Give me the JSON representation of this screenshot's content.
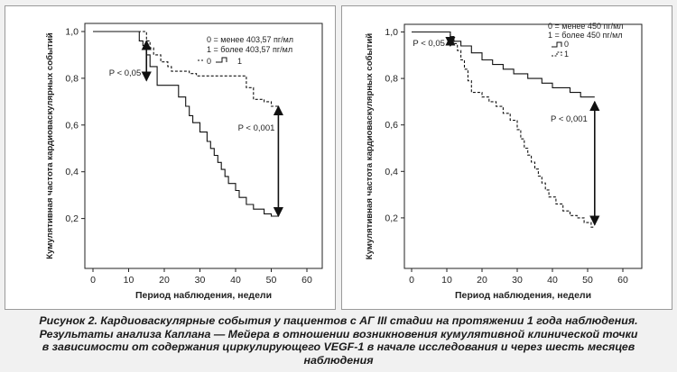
{
  "chart_data": [
    {
      "type": "line",
      "subtype": "kaplan-meier",
      "ylabel": "Кумулятивная частота кардиоваскулярных событий",
      "xlabel": "Период наблюдения, недели",
      "xlim": [
        0,
        60
      ],
      "ylim": [
        0,
        1.0
      ],
      "xticks": [
        "0",
        "10",
        "20",
        "30",
        "40",
        "50",
        "60"
      ],
      "yticks": [
        "0,2",
        "0,4",
        "0,6",
        "0,8",
        "1,0"
      ],
      "legend_lines": [
        "0 = менее 403,57 пг/мл",
        "1 = более 403,57 пг/мл"
      ],
      "legend_keys": [
        "0",
        "1"
      ],
      "series": [
        {
          "name": "0",
          "style": "dashed",
          "x": [
            0,
            15,
            15,
            16,
            16,
            17,
            17,
            19,
            19,
            21,
            21,
            22,
            22,
            27,
            27,
            29,
            29,
            43,
            43,
            45,
            45,
            48,
            48,
            50,
            50,
            52
          ],
          "y": [
            1.0,
            1.0,
            0.96,
            0.96,
            0.93,
            0.93,
            0.9,
            0.9,
            0.87,
            0.87,
            0.85,
            0.85,
            0.83,
            0.83,
            0.82,
            0.82,
            0.81,
            0.81,
            0.76,
            0.76,
            0.71,
            0.71,
            0.7,
            0.7,
            0.68,
            0.68
          ]
        },
        {
          "name": "1",
          "style": "solid",
          "x": [
            0,
            13,
            13,
            14,
            14,
            15,
            15,
            16,
            16,
            18,
            18,
            24,
            24,
            26,
            26,
            27,
            27,
            28,
            28,
            30,
            30,
            32,
            32,
            33,
            33,
            34,
            34,
            35,
            35,
            36,
            36,
            37,
            37,
            38,
            38,
            40,
            40,
            41,
            41,
            43,
            43,
            45,
            45,
            48,
            48,
            50,
            50,
            52
          ],
          "y": [
            1.0,
            1.0,
            0.96,
            0.96,
            0.94,
            0.94,
            0.9,
            0.9,
            0.85,
            0.85,
            0.77,
            0.77,
            0.72,
            0.72,
            0.68,
            0.68,
            0.64,
            0.64,
            0.61,
            0.61,
            0.57,
            0.57,
            0.53,
            0.53,
            0.5,
            0.5,
            0.47,
            0.47,
            0.44,
            0.44,
            0.41,
            0.41,
            0.38,
            0.38,
            0.35,
            0.35,
            0.32,
            0.32,
            0.29,
            0.29,
            0.26,
            0.26,
            0.24,
            0.24,
            0.22,
            0.22,
            0.21,
            0.21
          ]
        }
      ],
      "annotations": [
        {
          "text": "P < 0,05",
          "x": 15,
          "y_from": 0.96,
          "y_to": 0.79
        },
        {
          "text": "P < 0,001",
          "x": 52,
          "y_from": 0.68,
          "y_to": 0.21
        }
      ]
    },
    {
      "type": "line",
      "subtype": "kaplan-meier",
      "ylabel": "Кумулятивная частота кардиоваскулярных событий",
      "xlabel": "Период наблюдения, недели",
      "xlim": [
        0,
        60
      ],
      "ylim": [
        0,
        1.0
      ],
      "xticks": [
        "0",
        "10",
        "20",
        "30",
        "40",
        "50",
        "60"
      ],
      "yticks": [
        "0,2",
        "0,4",
        "0,6",
        "0,8",
        "1,0"
      ],
      "legend_lines": [
        "0 = менее 450 пг/мл",
        "1 = более 450 пг/мл"
      ],
      "legend_keys": [
        "0",
        "1"
      ],
      "series": [
        {
          "name": "0",
          "style": "solid",
          "x": [
            0,
            11,
            11,
            12,
            12,
            14,
            14,
            17,
            17,
            20,
            20,
            23,
            23,
            26,
            26,
            29,
            29,
            33,
            33,
            37,
            37,
            40,
            40,
            45,
            45,
            48,
            48,
            52
          ],
          "y": [
            1.0,
            1.0,
            0.98,
            0.98,
            0.96,
            0.96,
            0.94,
            0.94,
            0.91,
            0.91,
            0.88,
            0.88,
            0.86,
            0.86,
            0.84,
            0.84,
            0.82,
            0.82,
            0.8,
            0.8,
            0.78,
            0.78,
            0.76,
            0.76,
            0.74,
            0.74,
            0.72,
            0.72
          ]
        },
        {
          "name": "1",
          "style": "dashed",
          "x": [
            0,
            11,
            11,
            12,
            12,
            13,
            13,
            14,
            14,
            15,
            15,
            16,
            16,
            17,
            17,
            20,
            20,
            22,
            22,
            24,
            24,
            26,
            26,
            28,
            28,
            30,
            30,
            31,
            31,
            32,
            32,
            33,
            33,
            34,
            34,
            35,
            35,
            36,
            36,
            37,
            37,
            38,
            38,
            39,
            39,
            41,
            41,
            43,
            43,
            45,
            45,
            47,
            47,
            49,
            49,
            51,
            51,
            52
          ],
          "y": [
            1.0,
            1.0,
            0.98,
            0.98,
            0.95,
            0.95,
            0.92,
            0.92,
            0.88,
            0.88,
            0.84,
            0.84,
            0.79,
            0.79,
            0.74,
            0.74,
            0.72,
            0.72,
            0.7,
            0.7,
            0.68,
            0.68,
            0.65,
            0.65,
            0.62,
            0.62,
            0.58,
            0.58,
            0.54,
            0.54,
            0.5,
            0.5,
            0.47,
            0.47,
            0.44,
            0.44,
            0.41,
            0.41,
            0.38,
            0.38,
            0.35,
            0.35,
            0.32,
            0.32,
            0.29,
            0.29,
            0.26,
            0.26,
            0.23,
            0.23,
            0.21,
            0.21,
            0.2,
            0.2,
            0.18,
            0.18,
            0.16,
            0.16
          ]
        }
      ],
      "annotations": [
        {
          "text": "P < 0,05",
          "x": 11,
          "y_from": 0.98,
          "y_to": 0.94
        },
        {
          "text": "P < 0,001",
          "x": 52,
          "y_from": 0.7,
          "y_to": 0.17
        }
      ]
    }
  ],
  "caption_lines": [
    "Рисунок 2. Кардиоваскулярные события у пациентов с АГ III стадии на протяжении 1 года наблюдения.",
    "Результаты анализа Каплана — Мейера в отношении возникновения кумулятивной клинической точки",
    "в зависимости от содержания циркулирующего VEGF-1 в начале исследования и через шесть месяцев",
    "наблюдения"
  ]
}
